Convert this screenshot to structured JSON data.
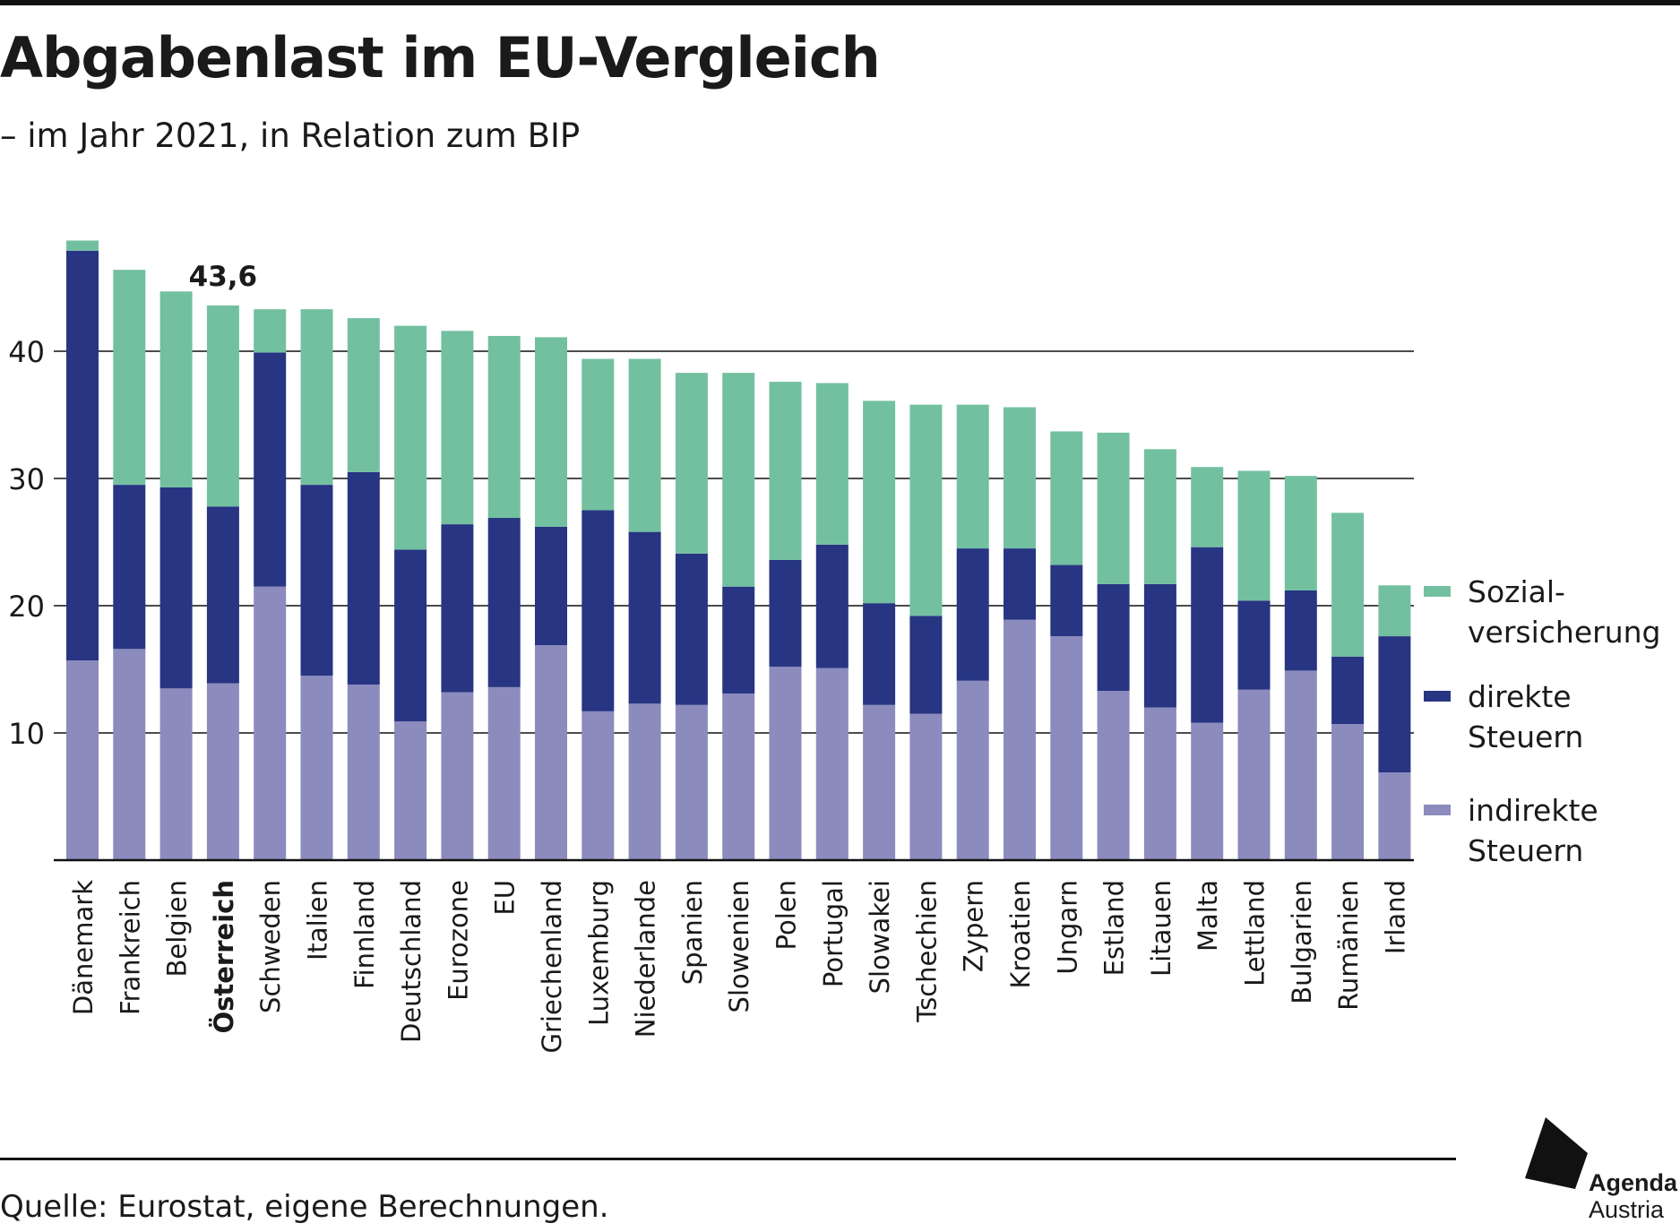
{
  "title": "Abgabenlast im EU-Vergleich",
  "subtitle": "– im Jahr 2021, in Relation zum BIP",
  "source": "Quelle: Eurostat, eigene Berechnungen.",
  "logo": {
    "line1": "Agenda",
    "line2": "Austria"
  },
  "colors": {
    "sozial": "#73c0a0",
    "direkt": "#273583",
    "indirekt": "#8c8bbe",
    "grid": "#111111"
  },
  "chart_data": {
    "type": "bar",
    "stacked": true,
    "title": "Abgabenlast im EU-Vergleich",
    "ylim": [
      0,
      50
    ],
    "yticks": [
      10,
      20,
      30,
      40
    ],
    "ytick_labels": [
      "10",
      "20",
      "30",
      "40"
    ],
    "grid": true,
    "legend_position": "right",
    "highlight": {
      "category": "Österreich",
      "label": "43,6"
    },
    "categories": [
      "Dänemark",
      "Frankreich",
      "Belgien",
      "Österreich",
      "Schweden",
      "Italien",
      "Finnland",
      "Deutschland",
      "Eurozone",
      "EU",
      "Griechenland",
      "Luxemburg",
      "Niederlande",
      "Spanien",
      "Slowenien",
      "Polen",
      "Portugal",
      "Slowakei",
      "Tschechien",
      "Zypern",
      "Kroatien",
      "Ungarn",
      "Estland",
      "Litauen",
      "Malta",
      "Lettland",
      "Bulgarien",
      "Rumänien",
      "Irland"
    ],
    "series": [
      {
        "name": "indirekte Steuern",
        "legend": [
          "indirekte",
          "Steuern"
        ],
        "color": "#8c8bbe",
        "values": [
          15.7,
          16.6,
          13.5,
          13.9,
          21.5,
          14.5,
          13.8,
          10.9,
          13.2,
          13.6,
          16.9,
          11.7,
          12.3,
          12.2,
          13.1,
          15.2,
          15.1,
          12.2,
          11.5,
          14.1,
          18.9,
          17.6,
          13.3,
          12.0,
          10.8,
          13.4,
          14.9,
          10.7,
          6.9
        ]
      },
      {
        "name": "direkte Steuern",
        "legend": [
          "direkte",
          "Steuern"
        ],
        "color": "#273583",
        "values": [
          32.2,
          12.9,
          15.8,
          13.9,
          18.4,
          15.0,
          16.7,
          13.5,
          13.2,
          13.3,
          9.3,
          15.8,
          13.5,
          11.9,
          8.4,
          8.4,
          9.7,
          8.0,
          7.7,
          10.4,
          5.6,
          5.6,
          8.4,
          9.7,
          13.8,
          7.0,
          6.3,
          5.3,
          10.7
        ]
      },
      {
        "name": "Sozialversicherung",
        "legend": [
          "Sozial-",
          "versicherung"
        ],
        "color": "#73c0a0",
        "values": [
          0.8,
          16.9,
          15.4,
          15.8,
          3.4,
          13.8,
          12.1,
          17.6,
          15.2,
          14.3,
          14.9,
          11.9,
          13.6,
          14.2,
          16.8,
          14.0,
          12.7,
          15.9,
          16.6,
          11.3,
          11.1,
          10.5,
          11.9,
          10.6,
          6.3,
          10.2,
          9.0,
          11.3,
          4.0
        ]
      }
    ]
  }
}
